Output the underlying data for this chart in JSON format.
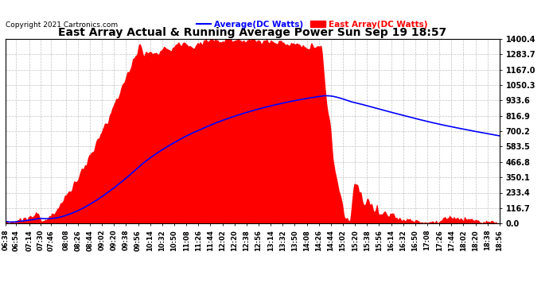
{
  "title": "East Array Actual & Running Average Power Sun Sep 19 18:57",
  "copyright": "Copyright 2021 Cartronics.com",
  "legend_avg": "Average(DC Watts)",
  "legend_east": "East Array(DC Watts)",
  "avg_color": "blue",
  "east_color": "red",
  "ymax": 1400.4,
  "ymin": 0.0,
  "yticks": [
    0.0,
    116.7,
    233.4,
    350.1,
    466.8,
    583.5,
    700.2,
    816.9,
    933.6,
    1050.3,
    1167.0,
    1283.7,
    1400.4
  ],
  "background_color": "#ffffff",
  "grid_color": "#bbbbbb",
  "label_times_str": [
    "06:38",
    "06:54",
    "07:14",
    "07:30",
    "07:46",
    "08:08",
    "08:26",
    "08:44",
    "09:02",
    "09:20",
    "09:38",
    "09:56",
    "10:14",
    "10:32",
    "10:50",
    "11:08",
    "11:26",
    "11:44",
    "12:02",
    "12:20",
    "12:38",
    "12:56",
    "13:14",
    "13:32",
    "13:50",
    "14:08",
    "14:26",
    "14:44",
    "15:02",
    "15:20",
    "15:38",
    "15:56",
    "16:14",
    "16:32",
    "16:50",
    "17:08",
    "17:26",
    "17:44",
    "18:02",
    "18:20",
    "18:38",
    "18:56"
  ]
}
